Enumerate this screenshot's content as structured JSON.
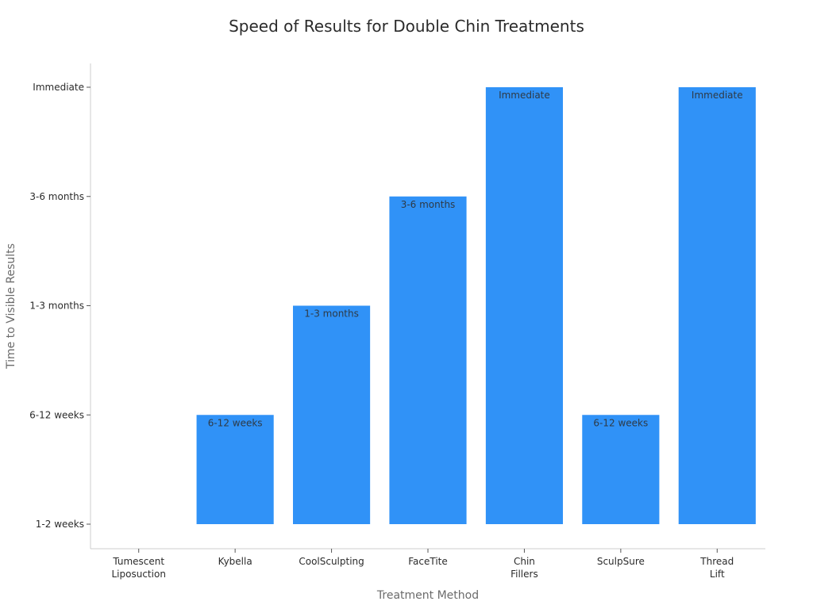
{
  "chart_data": {
    "type": "bar",
    "title": "Speed of Results for Double Chin Treatments",
    "xlabel": "Treatment Method",
    "ylabel": "Time to Visible Results",
    "y_levels": [
      "1-2 weeks",
      "6-12 weeks",
      "1-3 months",
      "3-6 months",
      "Immediate"
    ],
    "categories": [
      [
        "Tumescent",
        "Liposuction"
      ],
      [
        "Kybella"
      ],
      [
        "CoolSculpting"
      ],
      [
        "FaceTite"
      ],
      [
        "Chin",
        "Fillers"
      ],
      [
        "SculpSure"
      ],
      [
        "Thread",
        "Lift"
      ]
    ],
    "values": [
      "1-2 weeks",
      "6-12 weeks",
      "1-3 months",
      "3-6 months",
      "Immediate",
      "6-12 weeks",
      "Immediate"
    ],
    "bar_labels": [
      "",
      "6-12 weeks",
      "1-3 months",
      "3-6 months",
      "Immediate",
      "6-12 weeks",
      "Immediate"
    ],
    "bar_color": "#3092f7",
    "grid": false,
    "legend": "none"
  }
}
